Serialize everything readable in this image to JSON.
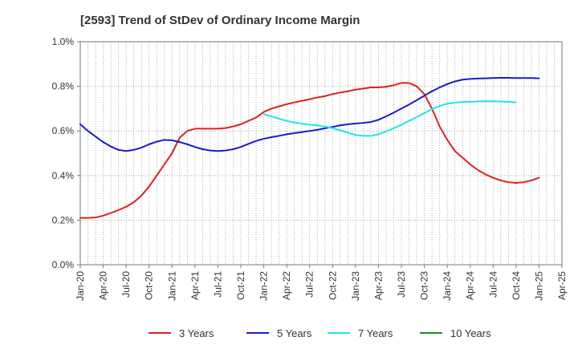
{
  "chart_data": {
    "type": "line",
    "title": "[2593]  Trend of StDev of Ordinary Income Margin",
    "xlabel": "",
    "ylabel": "",
    "x_ticks": [
      "Jan-20",
      "Apr-20",
      "Jul-20",
      "Oct-20",
      "Jan-21",
      "Apr-21",
      "Jul-21",
      "Oct-21",
      "Jan-22",
      "Apr-22",
      "Jul-22",
      "Oct-22",
      "Jan-23",
      "Apr-23",
      "Jul-23",
      "Oct-23",
      "Jan-24",
      "Apr-24",
      "Jul-24",
      "Oct-24",
      "Jan-25",
      "Apr-25"
    ],
    "y_ticks": [
      "0.0%",
      "0.2%",
      "0.4%",
      "0.6%",
      "0.8%",
      "1.0%"
    ],
    "ylim": [
      0,
      1.0
    ],
    "y_unit": "%",
    "grid": true,
    "legend_position": "bottom",
    "series": [
      {
        "name": "3 Years",
        "color": "#dd2222",
        "points": [
          [
            "Jan-20",
            0.21
          ],
          [
            "Feb-20",
            0.21
          ],
          [
            "Mar-20",
            0.212
          ],
          [
            "Apr-20",
            0.22
          ],
          [
            "May-20",
            0.232
          ],
          [
            "Jun-20",
            0.245
          ],
          [
            "Jul-20",
            0.26
          ],
          [
            "Aug-20",
            0.28
          ],
          [
            "Sep-20",
            0.31
          ],
          [
            "Oct-20",
            0.35
          ],
          [
            "Nov-20",
            0.4
          ],
          [
            "Dec-20",
            0.45
          ],
          [
            "Jan-21",
            0.5
          ],
          [
            "Feb-21",
            0.57
          ],
          [
            "Mar-21",
            0.6
          ],
          [
            "Apr-21",
            0.61
          ],
          [
            "May-21",
            0.61
          ],
          [
            "Jun-21",
            0.61
          ],
          [
            "Jul-21",
            0.61
          ],
          [
            "Aug-21",
            0.613
          ],
          [
            "Sep-21",
            0.62
          ],
          [
            "Oct-21",
            0.63
          ],
          [
            "Nov-21",
            0.645
          ],
          [
            "Dec-21",
            0.66
          ],
          [
            "Jan-22",
            0.685
          ],
          [
            "Feb-22",
            0.7
          ],
          [
            "Mar-22",
            0.71
          ],
          [
            "Apr-22",
            0.72
          ],
          [
            "May-22",
            0.728
          ],
          [
            "Jun-22",
            0.735
          ],
          [
            "Jul-22",
            0.742
          ],
          [
            "Aug-22",
            0.75
          ],
          [
            "Sep-22",
            0.756
          ],
          [
            "Oct-22",
            0.765
          ],
          [
            "Nov-22",
            0.772
          ],
          [
            "Dec-22",
            0.778
          ],
          [
            "Jan-23",
            0.785
          ],
          [
            "Feb-23",
            0.79
          ],
          [
            "Mar-23",
            0.795
          ],
          [
            "Apr-23",
            0.795
          ],
          [
            "May-23",
            0.798
          ],
          [
            "Jun-23",
            0.805
          ],
          [
            "Jul-23",
            0.815
          ],
          [
            "Aug-23",
            0.815
          ],
          [
            "Sep-23",
            0.8
          ],
          [
            "Oct-23",
            0.765
          ],
          [
            "Nov-23",
            0.7
          ],
          [
            "Dec-23",
            0.62
          ],
          [
            "Jan-24",
            0.56
          ],
          [
            "Feb-24",
            0.51
          ],
          [
            "Mar-24",
            0.48
          ],
          [
            "Apr-24",
            0.45
          ],
          [
            "May-24",
            0.425
          ],
          [
            "Jun-24",
            0.405
          ],
          [
            "Jul-24",
            0.39
          ],
          [
            "Aug-24",
            0.378
          ],
          [
            "Sep-24",
            0.37
          ],
          [
            "Oct-24",
            0.367
          ],
          [
            "Nov-24",
            0.37
          ],
          [
            "Dec-24",
            0.378
          ],
          [
            "Jan-25",
            0.39
          ]
        ]
      },
      {
        "name": "5 Years",
        "color": "#1a1acc",
        "points": [
          [
            "Jan-20",
            0.63
          ],
          [
            "Feb-20",
            0.6
          ],
          [
            "Mar-20",
            0.575
          ],
          [
            "Apr-20",
            0.55
          ],
          [
            "May-20",
            0.53
          ],
          [
            "Jun-20",
            0.515
          ],
          [
            "Jul-20",
            0.51
          ],
          [
            "Aug-20",
            0.515
          ],
          [
            "Sep-20",
            0.525
          ],
          [
            "Oct-20",
            0.54
          ],
          [
            "Nov-20",
            0.552
          ],
          [
            "Dec-20",
            0.56
          ],
          [
            "Jan-21",
            0.558
          ],
          [
            "Feb-21",
            0.55
          ],
          [
            "Mar-21",
            0.54
          ],
          [
            "Apr-21",
            0.528
          ],
          [
            "May-21",
            0.518
          ],
          [
            "Jun-21",
            0.512
          ],
          [
            "Jul-21",
            0.51
          ],
          [
            "Aug-21",
            0.512
          ],
          [
            "Sep-21",
            0.518
          ],
          [
            "Oct-21",
            0.528
          ],
          [
            "Nov-21",
            0.542
          ],
          [
            "Dec-21",
            0.555
          ],
          [
            "Jan-22",
            0.565
          ],
          [
            "Feb-22",
            0.572
          ],
          [
            "Mar-22",
            0.578
          ],
          [
            "Apr-22",
            0.585
          ],
          [
            "May-22",
            0.59
          ],
          [
            "Jun-22",
            0.595
          ],
          [
            "Jul-22",
            0.6
          ],
          [
            "Aug-22",
            0.605
          ],
          [
            "Sep-22",
            0.612
          ],
          [
            "Oct-22",
            0.618
          ],
          [
            "Nov-22",
            0.625
          ],
          [
            "Dec-22",
            0.63
          ],
          [
            "Jan-23",
            0.633
          ],
          [
            "Feb-23",
            0.636
          ],
          [
            "Mar-23",
            0.64
          ],
          [
            "Apr-23",
            0.65
          ],
          [
            "May-23",
            0.665
          ],
          [
            "Jun-23",
            0.682
          ],
          [
            "Jul-23",
            0.7
          ],
          [
            "Aug-23",
            0.718
          ],
          [
            "Sep-23",
            0.738
          ],
          [
            "Oct-23",
            0.758
          ],
          [
            "Nov-23",
            0.778
          ],
          [
            "Dec-23",
            0.795
          ],
          [
            "Jan-24",
            0.81
          ],
          [
            "Feb-24",
            0.822
          ],
          [
            "Mar-24",
            0.83
          ],
          [
            "Apr-24",
            0.833
          ],
          [
            "May-24",
            0.835
          ],
          [
            "Jun-24",
            0.836
          ],
          [
            "Jul-24",
            0.837
          ],
          [
            "Aug-24",
            0.838
          ],
          [
            "Sep-24",
            0.838
          ],
          [
            "Oct-24",
            0.837
          ],
          [
            "Nov-24",
            0.837
          ],
          [
            "Dec-24",
            0.837
          ],
          [
            "Jan-25",
            0.836
          ]
        ]
      },
      {
        "name": "7 Years",
        "color": "#22e3e8",
        "points": [
          [
            "Jan-22",
            0.675
          ],
          [
            "Feb-22",
            0.665
          ],
          [
            "Mar-22",
            0.655
          ],
          [
            "Apr-22",
            0.645
          ],
          [
            "May-22",
            0.638
          ],
          [
            "Jun-22",
            0.632
          ],
          [
            "Jul-22",
            0.628
          ],
          [
            "Aug-22",
            0.625
          ],
          [
            "Sep-22",
            0.62
          ],
          [
            "Oct-22",
            0.612
          ],
          [
            "Nov-22",
            0.603
          ],
          [
            "Dec-22",
            0.592
          ],
          [
            "Jan-23",
            0.582
          ],
          [
            "Feb-23",
            0.578
          ],
          [
            "Mar-23",
            0.578
          ],
          [
            "Apr-23",
            0.585
          ],
          [
            "May-23",
            0.598
          ],
          [
            "Jun-23",
            0.612
          ],
          [
            "Jul-23",
            0.628
          ],
          [
            "Aug-23",
            0.645
          ],
          [
            "Sep-23",
            0.662
          ],
          [
            "Oct-23",
            0.68
          ],
          [
            "Nov-23",
            0.698
          ],
          [
            "Dec-23",
            0.712
          ],
          [
            "Jan-24",
            0.722
          ],
          [
            "Feb-24",
            0.727
          ],
          [
            "Mar-24",
            0.73
          ],
          [
            "Apr-24",
            0.73
          ],
          [
            "May-24",
            0.732
          ],
          [
            "Jun-24",
            0.733
          ],
          [
            "Jul-24",
            0.733
          ],
          [
            "Aug-24",
            0.732
          ],
          [
            "Sep-24",
            0.73
          ],
          [
            "Oct-24",
            0.728
          ]
        ]
      },
      {
        "name": "10 Years",
        "color": "#228b22",
        "points": []
      }
    ]
  }
}
